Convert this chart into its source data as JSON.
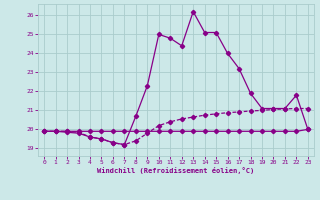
{
  "xlabel": "Windchill (Refroidissement éolien,°C)",
  "xlim": [
    -0.5,
    23.5
  ],
  "ylim": [
    18.6,
    26.6
  ],
  "yticks": [
    19,
    20,
    21,
    22,
    23,
    24,
    25,
    26
  ],
  "xticks": [
    0,
    1,
    2,
    3,
    4,
    5,
    6,
    7,
    8,
    9,
    10,
    11,
    12,
    13,
    14,
    15,
    16,
    17,
    18,
    19,
    20,
    21,
    22,
    23
  ],
  "bg_color": "#cce8e8",
  "grid_color": "#aacccc",
  "line_color": "#880088",
  "line1_x": [
    0,
    1,
    2,
    3,
    4,
    5,
    6,
    7,
    8,
    9,
    10,
    11,
    12,
    13,
    14,
    15,
    16,
    17,
    18,
    19,
    20,
    21,
    22,
    23
  ],
  "line1_y": [
    19.9,
    19.9,
    19.9,
    19.9,
    19.9,
    19.9,
    19.9,
    19.9,
    19.9,
    19.9,
    19.9,
    19.9,
    19.9,
    19.9,
    19.9,
    19.9,
    19.9,
    19.9,
    19.9,
    19.9,
    19.9,
    19.9,
    19.9,
    20.0
  ],
  "line2_x": [
    0,
    1,
    2,
    3,
    4,
    5,
    6,
    7,
    8,
    9,
    10,
    11,
    12,
    13,
    14,
    15,
    16,
    17,
    18,
    19,
    20,
    21,
    22,
    23
  ],
  "line2_y": [
    19.9,
    19.9,
    19.9,
    19.85,
    19.6,
    19.5,
    19.3,
    19.2,
    19.4,
    19.8,
    20.2,
    20.4,
    20.55,
    20.65,
    20.75,
    20.82,
    20.88,
    20.92,
    20.97,
    21.0,
    21.05,
    21.08,
    21.1,
    21.1
  ],
  "line3_x": [
    0,
    1,
    2,
    3,
    4,
    5,
    6,
    7,
    8,
    9,
    10,
    11,
    12,
    13,
    14,
    15,
    16,
    17,
    18,
    19,
    20,
    21,
    22,
    23
  ],
  "line3_y": [
    19.9,
    19.9,
    19.85,
    19.8,
    19.6,
    19.5,
    19.3,
    19.2,
    20.7,
    22.3,
    25.0,
    24.8,
    24.4,
    26.2,
    25.1,
    25.1,
    24.0,
    23.2,
    21.9,
    21.1,
    21.1,
    21.1,
    21.8,
    20.0
  ]
}
